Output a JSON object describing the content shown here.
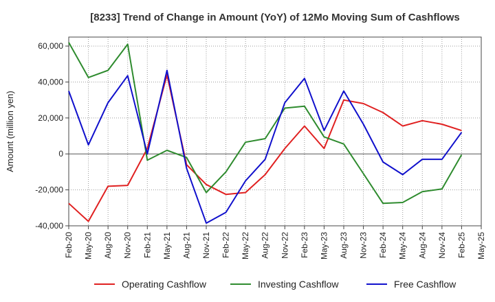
{
  "chart_data": {
    "type": "line",
    "title": "[8233]  Trend of Change in Amount (YoY) of 12Mo Moving Sum of Cashflows",
    "xlabel": "",
    "ylabel": "Amount (million yen)",
    "ylim": [
      -40000,
      65000
    ],
    "yticks": [
      -40000,
      -20000,
      0,
      20000,
      40000,
      60000
    ],
    "ytick_labels": [
      "-40,000",
      "-20,000",
      "0",
      "20,000",
      "40,000",
      "60,000"
    ],
    "categories": [
      "Feb-20",
      "May-20",
      "Aug-20",
      "Nov-20",
      "Feb-21",
      "May-21",
      "Aug-21",
      "Nov-21",
      "Feb-22",
      "May-22",
      "Aug-22",
      "Nov-22",
      "Feb-23",
      "May-23",
      "Aug-23",
      "Nov-23",
      "Feb-24",
      "May-24",
      "Aug-24",
      "Nov-24",
      "Feb-25",
      "May-25"
    ],
    "grid": true,
    "legend_position": "bottom",
    "series": [
      {
        "name": "Operating Cashflow",
        "color": "#e02020",
        "values": [
          -27500,
          -37500,
          -18000,
          -17500,
          3000,
          44000,
          -6000,
          -17000,
          -22500,
          -21500,
          -11500,
          3000,
          15500,
          3000,
          30000,
          28000,
          23000,
          15500,
          18500,
          16500,
          13000,
          null
        ]
      },
      {
        "name": "Investing Cashflow",
        "color": "#2e8b2e",
        "values": [
          62000,
          42500,
          46500,
          61000,
          -3500,
          2000,
          -2000,
          -21500,
          -10000,
          6500,
          8500,
          25500,
          26500,
          9500,
          5500,
          -11000,
          -27500,
          -27000,
          -21000,
          -19500,
          -500,
          null
        ]
      },
      {
        "name": "Free Cashflow",
        "color": "#1010cc",
        "values": [
          35000,
          5000,
          28500,
          43500,
          0,
          46500,
          -8000,
          -38500,
          -32500,
          -15000,
          -3000,
          28500,
          42000,
          13000,
          35000,
          16500,
          -4500,
          -11500,
          -3000,
          -3000,
          12000,
          null
        ]
      }
    ]
  }
}
